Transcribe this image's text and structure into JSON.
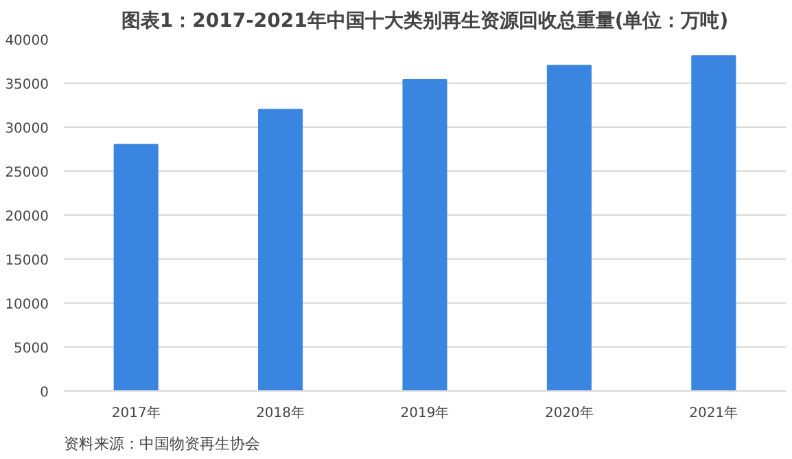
{
  "chart_data": {
    "type": "bar",
    "title": "图表1：2017-2021年中国十大类别再生资源回收总重量(单位：万吨)",
    "categories": [
      "2017年",
      "2018年",
      "2019年",
      "2020年",
      "2021年"
    ],
    "values": [
      28000,
      32000,
      35400,
      37000,
      38100
    ],
    "color": "#3a85e0",
    "ylim": [
      0,
      40000
    ],
    "yticks": [
      0,
      5000,
      10000,
      15000,
      20000,
      25000,
      30000,
      35000,
      40000
    ],
    "grid": "y",
    "annotations": [
      "资料来源：中国物资再生协会"
    ]
  }
}
